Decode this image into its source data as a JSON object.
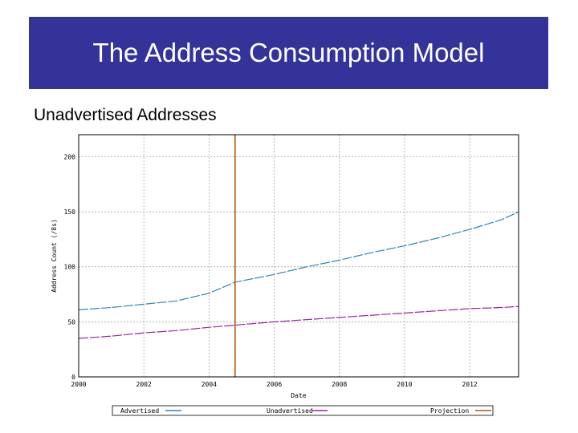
{
  "slide": {
    "title": "The Address Consumption Model",
    "subtitle": "Unadvertised Addresses"
  },
  "chart_data": {
    "type": "line",
    "title": "",
    "xlabel": "Date",
    "ylabel": "Address Count (/8s)",
    "xlim": [
      2000,
      2013.5
    ],
    "ylim": [
      0,
      220
    ],
    "x_ticks": [
      2000,
      2002,
      2004,
      2006,
      2008,
      2010,
      2012
    ],
    "x_tick_labels": [
      "2000",
      "2002",
      "2004",
      "2006",
      "2008",
      "2010",
      "2012"
    ],
    "y_ticks": [
      0,
      50,
      100,
      150,
      200
    ],
    "y_tick_labels": [
      "0",
      "50",
      "100",
      "150",
      "200"
    ],
    "grid": true,
    "legend_position": "bottom",
    "series": [
      {
        "name": "Advertised",
        "color": "#2a88b8",
        "x": [
          2000,
          2001,
          2002,
          2003,
          2004,
          2004.8,
          2006,
          2007,
          2008,
          2009,
          2010,
          2011,
          2012,
          2013,
          2013.5
        ],
        "y": [
          61,
          63,
          66,
          69,
          76,
          86,
          93,
          100,
          106,
          113,
          119,
          126,
          134,
          143,
          150
        ]
      },
      {
        "name": "Unadvertised",
        "color": "#a020a8",
        "x": [
          2000,
          2001,
          2002,
          2003,
          2004,
          2004.8,
          2006,
          2007,
          2008,
          2009,
          2010,
          2011,
          2012,
          2013,
          2013.5
        ],
        "y": [
          35,
          37,
          40,
          42,
          45,
          47,
          50,
          52,
          54,
          56,
          58,
          60,
          62,
          63,
          64
        ]
      },
      {
        "name": "Projection",
        "color": "#b05a10",
        "x": [
          2004.8,
          2004.8
        ],
        "y": [
          0,
          220
        ]
      }
    ]
  }
}
